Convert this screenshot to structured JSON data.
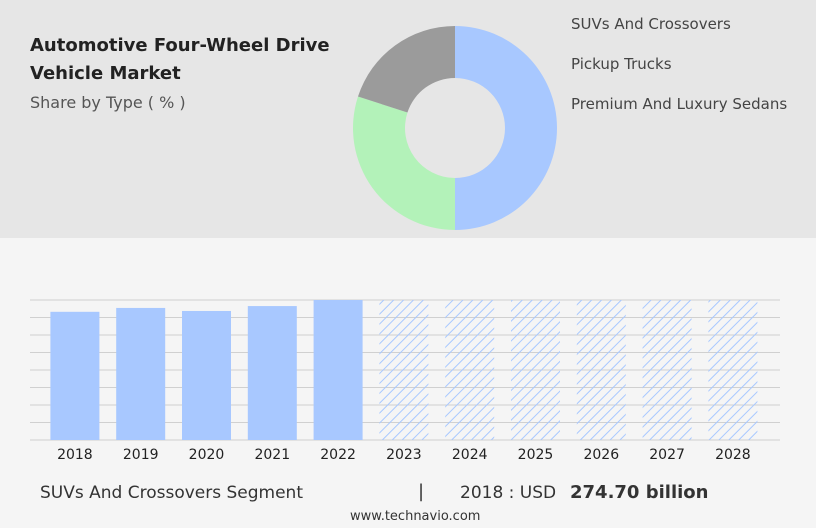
{
  "chart_data": [
    {
      "type": "pie",
      "title": "Automotive Four-Wheel Drive Vehicle Market",
      "subtitle": "Share by Type ( % )",
      "categories": [
        "SUVs And Crossovers",
        "Pickup Trucks",
        "Premium And Luxury Sedans"
      ],
      "values": [
        50,
        30,
        20
      ],
      "colors": [
        "#a8c8ff",
        "#b3f2b9",
        "#9b9b9b"
      ],
      "legend_colors": [
        "#a8c8ff",
        "#7de38b",
        "#9b9b9b"
      ],
      "donut": true
    },
    {
      "type": "bar",
      "categories": [
        "2018",
        "2019",
        "2020",
        "2021",
        "2022",
        "2023",
        "2024",
        "2025",
        "2026",
        "2027",
        "2028"
      ],
      "values": [
        274.7,
        283,
        276.5,
        287,
        300,
        null,
        null,
        null,
        null,
        null,
        null
      ],
      "color": "#a8c8ff",
      "ylim": [
        0,
        300
      ]
    }
  ],
  "footer": {
    "segment": "SUVs And Crossovers Segment",
    "label": "2018 : USD",
    "value": "274.70 billion",
    "source": "www.technavio.com"
  }
}
